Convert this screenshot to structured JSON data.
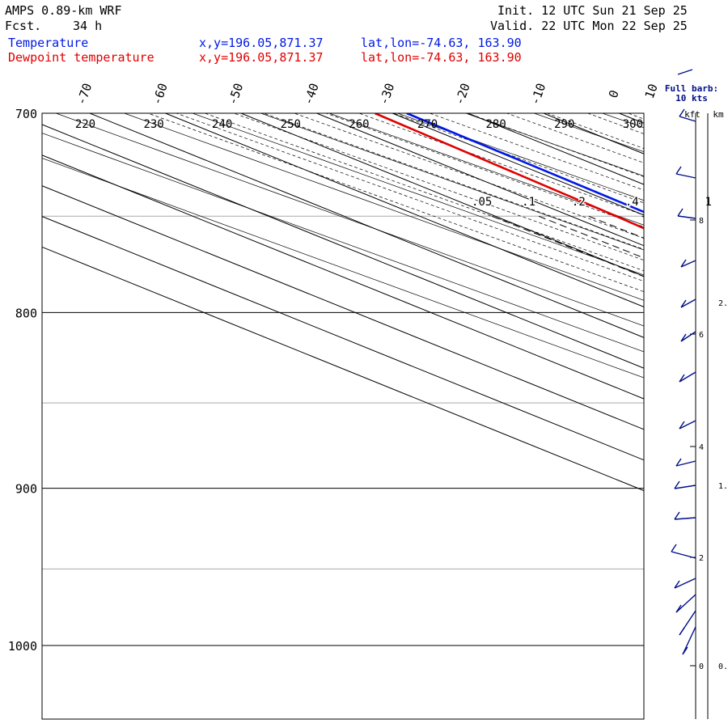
{
  "header": {
    "model": "AMPS 0.89-km WRF",
    "forecast_label": "Fcst.",
    "forecast_hours": "34 h",
    "init": "Init. 12 UTC Sun 21 Sep 25",
    "valid": "Valid. 22 UTC Mon 22 Sep 25"
  },
  "legend": {
    "temperature": {
      "label": "Temperature",
      "xy": "x,y=196.05,871.37",
      "latlon": "lat,lon=-74.63, 163.90",
      "color": "#0018e6"
    },
    "dewpoint": {
      "label": "Dewpoint temperature",
      "xy": "x,y=196.05,871.37",
      "latlon": "lat,lon=-74.63, 163.90",
      "color": "#e00000"
    }
  },
  "barb_legend": {
    "line1": "Full barb:",
    "line2": "10 kts",
    "kft_label": "kft",
    "km_label": "km"
  },
  "chart_data": {
    "type": "line",
    "title": "Skew-T log-P sounding",
    "xlabel": "Temperature (C)",
    "ylabel": "Pressure (hPa)",
    "pressure_range": [
      700,
      1050
    ],
    "pressure_labels": [
      700,
      800,
      900,
      1000
    ],
    "temperature_ticks": [
      -70,
      -60,
      -50,
      -40,
      -30,
      -20,
      -10,
      0,
      10
    ],
    "dry_adiabat_labels": [
      220,
      230,
      240,
      250,
      260,
      270,
      280,
      290,
      300
    ],
    "mixing_ratio_labels": [
      ".05",
      ".1",
      ".2",
      ".4",
      "1",
      "2",
      "3",
      "4",
      "6"
    ],
    "series": [
      {
        "name": "Temperature",
        "points": [
          {
            "p": 700,
            "t": -28.1
          },
          {
            "p": 750,
            "t": -29.0
          },
          {
            "p": 800,
            "t": -31.5
          },
          {
            "p": 850,
            "t": -33.0
          },
          {
            "p": 880,
            "t": -34.2
          },
          {
            "p": 900,
            "t": -35.8
          },
          {
            "p": 920,
            "t": -37.0
          },
          {
            "p": 940,
            "t": -38.6
          },
          {
            "p": 955,
            "t": -40.2
          },
          {
            "p": 965,
            "t": -41.6
          },
          {
            "p": 975,
            "t": -42.9
          }
        ]
      },
      {
        "name": "Dewpoint temperature",
        "points": [
          {
            "p": 700,
            "t": -32.3
          },
          {
            "p": 750,
            "t": -34.0
          },
          {
            "p": 800,
            "t": -36.5
          },
          {
            "p": 850,
            "t": -38.3
          },
          {
            "p": 862,
            "t": -39.5
          },
          {
            "p": 880,
            "t": -42.0
          },
          {
            "p": 900,
            "t": -44.5
          },
          {
            "p": 920,
            "t": -47.0
          },
          {
            "p": 940,
            "t": -49.5
          },
          {
            "p": 955,
            "t": -51.5
          },
          {
            "p": 965,
            "t": -52.9
          },
          {
            "p": 975,
            "t": -53.5
          }
        ]
      }
    ],
    "height_axis_kft": [
      "8",
      "6",
      "4",
      "2",
      "0"
    ],
    "height_axis_km": [
      "2.",
      "1.",
      "0."
    ]
  }
}
